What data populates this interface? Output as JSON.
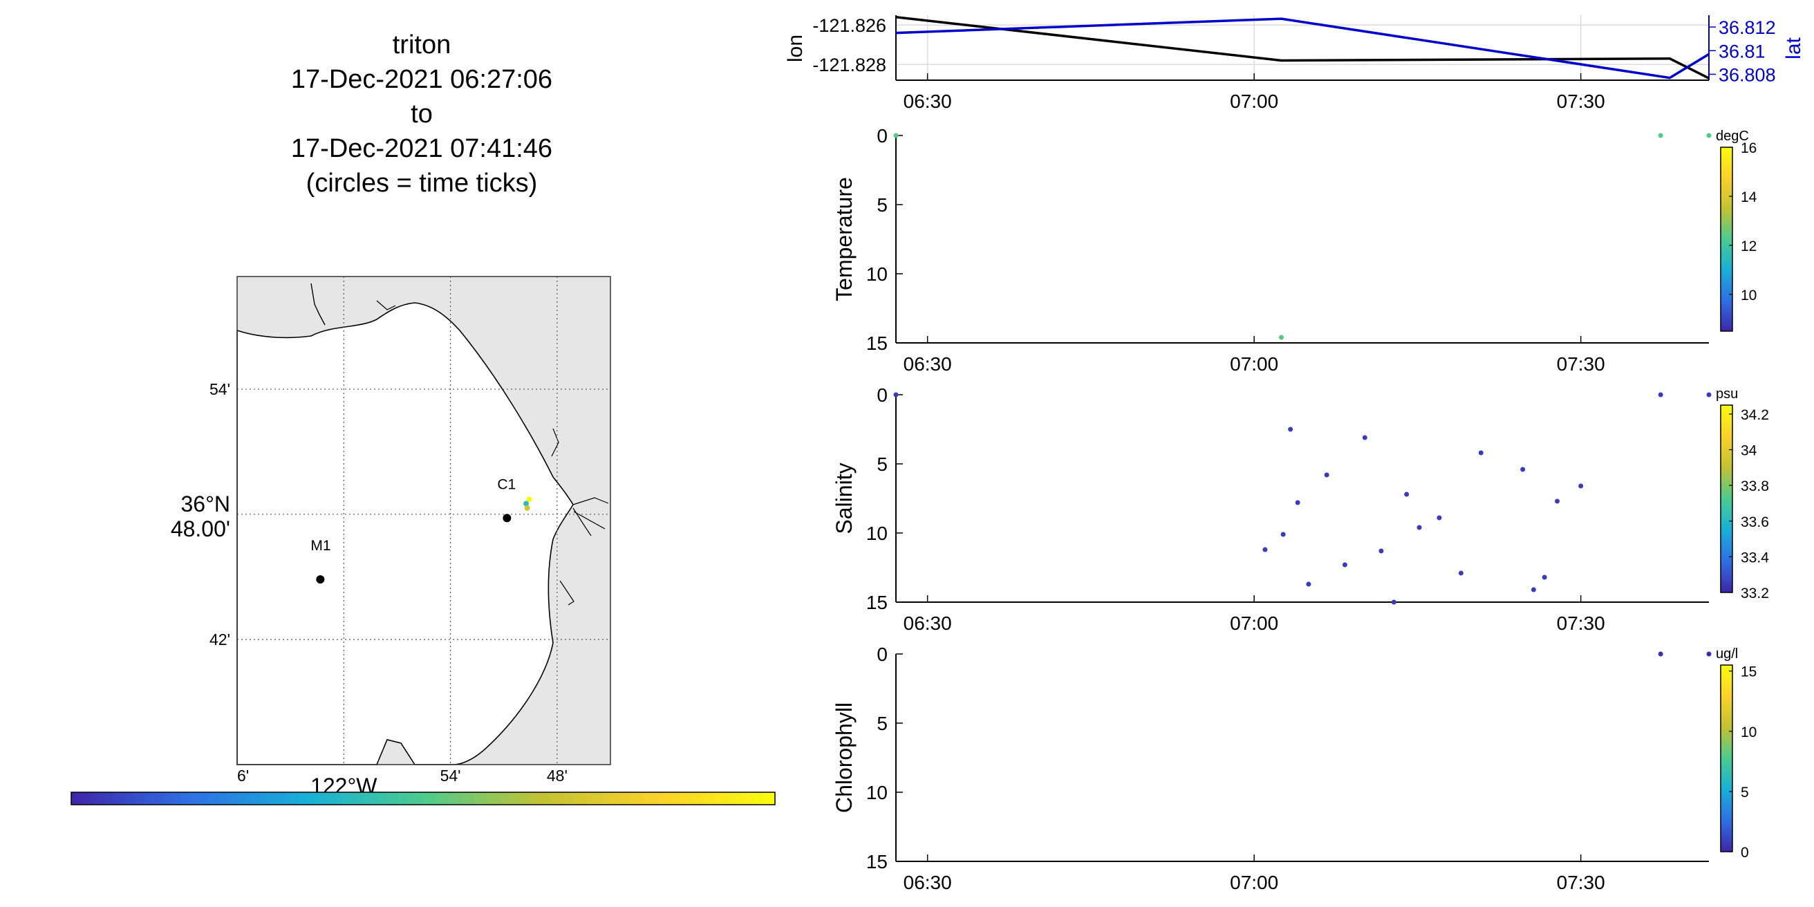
{
  "title": {
    "vehicle": "triton",
    "start": "17-Dec-2021 06:27:06",
    "to": "to",
    "end": "17-Dec-2021 07:41:46",
    "note": "(circles = time ticks)"
  },
  "map": {
    "lat_ticks": [
      {
        "value": 36.9,
        "label": "54'"
      },
      {
        "value": 36.8,
        "label": "36°N 48.00'"
      },
      {
        "value": 36.7,
        "label": "42'"
      }
    ],
    "lon_ticks": [
      {
        "value": -122.1,
        "label": "6'"
      },
      {
        "value": -122.0,
        "label": "122°W"
      },
      {
        "value": -121.9,
        "label": "54'"
      },
      {
        "value": -121.8,
        "label": "48'"
      }
    ],
    "lat_range": [
      36.6,
      36.99
    ],
    "lon_range": [
      -122.1,
      -121.75
    ],
    "stations": [
      {
        "name": "M1",
        "lon": -122.022,
        "lat": 36.748
      },
      {
        "name": "C1",
        "lon": -121.847,
        "lat": 36.797
      }
    ],
    "track": [
      {
        "lon": -121.829,
        "lat": 36.8085
      },
      {
        "lon": -121.828,
        "lat": 36.805
      },
      {
        "lon": -121.826,
        "lat": 36.812
      }
    ],
    "time_colorbar": {
      "colors": [
        "#3e26a8",
        "#2f6fe4",
        "#18b0d8",
        "#4ccb8f",
        "#c2c234",
        "#fbd12b",
        "#f9fb0e"
      ]
    }
  },
  "chart_data": [
    {
      "type": "line",
      "panel": "position",
      "x_ticks": [
        "06:30",
        "07:00",
        "07:30"
      ],
      "ylabel": "lon",
      "ylabel_right": "lat",
      "ylim": [
        -121.8288,
        -121.8255
      ],
      "ylim_right": [
        36.8075,
        36.813
      ],
      "y_ticks": [
        "-121.826",
        "-121.828"
      ],
      "y_ticks_right": [
        "36.812",
        "36.81",
        "36.808"
      ],
      "series": [
        {
          "name": "lon",
          "color": "#000000",
          "x": [
            "06:27:06",
            "07:02:30",
            "07:38:10",
            "07:41:46"
          ],
          "values": [
            -121.8256,
            -121.8278,
            -121.8277,
            -121.8287
          ]
        },
        {
          "name": "lat",
          "color": "#0000cc",
          "x": [
            "06:27:06",
            "07:02:30",
            "07:38:10",
            "07:41:46"
          ],
          "values": [
            36.8115,
            36.8127,
            36.8077,
            36.8097
          ]
        }
      ]
    },
    {
      "type": "scatter",
      "panel": "Temperature",
      "ylabel": "Temperature",
      "units": "degC",
      "x_ticks": [
        "06:30",
        "07:00",
        "07:30"
      ],
      "y_ticks": [
        "0",
        "5",
        "10",
        "15"
      ],
      "ylim": [
        15,
        0
      ],
      "cbar_ticks": [
        "16",
        "14",
        "12",
        "10"
      ],
      "cbar_range": [
        8.5,
        16
      ],
      "x": [
        "06:27:06",
        "07:02:30",
        "07:37:20",
        "07:41:46"
      ],
      "depth": [
        0,
        14.6,
        0,
        0
      ],
      "values": [
        12.3,
        12.3,
        12.3,
        12.3
      ]
    },
    {
      "type": "scatter",
      "panel": "Salinity",
      "ylabel": "Salinity",
      "units": "psu",
      "x_ticks": [
        "06:30",
        "07:00",
        "07:30"
      ],
      "y_ticks": [
        "0",
        "5",
        "10",
        "15"
      ],
      "ylim": [
        15,
        0
      ],
      "cbar_ticks": [
        "34.2",
        "34",
        "33.8",
        "33.6",
        "33.4",
        "33.2"
      ],
      "cbar_range": [
        33.2,
        34.25
      ],
      "x": [
        "06:27:06",
        "07:01:00",
        "07:02:40",
        "07:03:20",
        "07:04:00",
        "07:05:00",
        "07:06:40",
        "07:08:20",
        "07:10:10",
        "07:11:40",
        "07:12:50",
        "07:14:00",
        "07:15:10",
        "07:17:00",
        "07:19:00",
        "07:20:50",
        "07:24:40",
        "07:25:40",
        "07:26:40",
        "07:27:50",
        "07:30:00",
        "07:37:20",
        "07:41:46"
      ],
      "depth": [
        0,
        11.2,
        10.1,
        2.5,
        7.8,
        13.7,
        5.8,
        12.3,
        3.1,
        11.3,
        15,
        7.2,
        9.6,
        8.9,
        12.9,
        4.2,
        5.4,
        14.1,
        13.2,
        7.7,
        6.6,
        0,
        0
      ],
      "values": [
        33.25,
        33.25,
        33.25,
        33.25,
        33.25,
        33.25,
        33.25,
        33.25,
        33.25,
        33.25,
        33.25,
        33.25,
        33.25,
        33.25,
        33.25,
        33.25,
        33.25,
        33.25,
        33.25,
        33.25,
        33.25,
        33.25,
        33.25
      ]
    },
    {
      "type": "scatter",
      "panel": "Chlorophyll",
      "ylabel": "Chlorophyll",
      "units": "ug/l",
      "x_ticks": [
        "06:30",
        "07:00",
        "07:30"
      ],
      "y_ticks": [
        "0",
        "5",
        "10",
        "15"
      ],
      "ylim": [
        15,
        0
      ],
      "cbar_ticks": [
        "15",
        "10",
        "5",
        "0"
      ],
      "cbar_range": [
        0,
        15.5
      ],
      "x": [
        "07:37:20",
        "07:41:46"
      ],
      "depth": [
        0,
        0
      ],
      "values": [
        0.3,
        0.3
      ]
    }
  ]
}
